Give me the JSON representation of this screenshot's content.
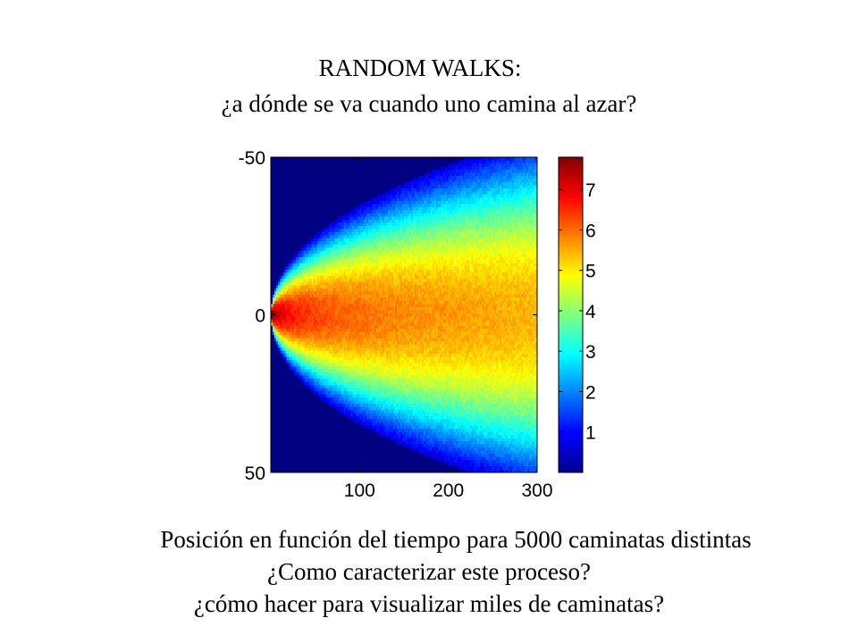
{
  "slide": {
    "title_line1": "RANDOM WALKS:",
    "title_line2": "¿a dónde se va cuando uno camina al azar?",
    "caption_line1": "Posición en función del tiempo para 5000 caminatas distintas",
    "caption_line2": "¿Como caracterizar este proceso?",
    "caption_line3": "¿cómo hacer para visualizar  miles de caminatas?"
  },
  "chart_data": {
    "type": "heatmap",
    "title": "",
    "xlabel": "",
    "ylabel": "",
    "xlim": [
      0,
      300
    ],
    "ylim": [
      -50,
      50
    ],
    "y_reversed": true,
    "x_ticks": [
      100,
      200,
      300
    ],
    "y_ticks": [
      -50,
      0,
      50
    ],
    "colormap": "jet",
    "colorbar": {
      "range": [
        0,
        7.8
      ],
      "ticks": [
        1,
        2,
        3,
        4,
        5,
        6,
        7
      ]
    },
    "value_description": "log density of walker positions; peak ~7.8 at origin, spreading as sqrt(time)",
    "num_walks": 5000
  }
}
